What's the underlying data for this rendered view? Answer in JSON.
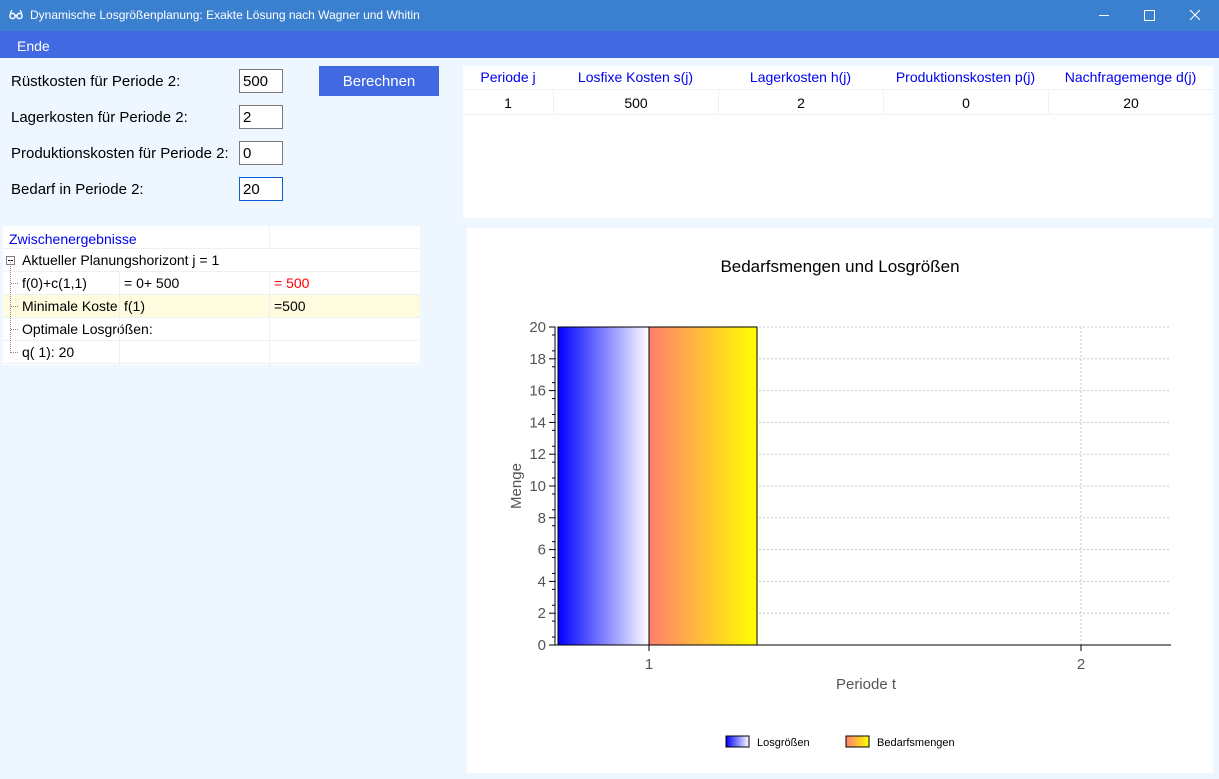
{
  "window": {
    "title": "Dynamische Losgrößenplanung: Exakte Lösung nach Wagner und Whitin",
    "icon": "glasses-icon",
    "controls": [
      "minimize-icon",
      "maximize-icon",
      "close-icon"
    ]
  },
  "menu": {
    "items": [
      "Ende"
    ]
  },
  "form": {
    "fields": [
      {
        "label": "Rüstkosten für Periode 2:",
        "value": "500"
      },
      {
        "label": "Lagerkosten für Periode 2:",
        "value": "2"
      },
      {
        "label": "Produktionskosten für Periode 2:",
        "value": "0"
      },
      {
        "label": "Bedarf in Periode 2:",
        "value": "20"
      }
    ],
    "button_label": "Berechnen"
  },
  "table": {
    "headers": [
      "Periode j",
      "Losfixe Kosten s(j)",
      "Lagerkosten h(j)",
      "Produktionskosten p(j)",
      "Nachfragemenge d(j)"
    ],
    "rows": [
      [
        "1",
        "500",
        "2",
        "0",
        "20"
      ]
    ]
  },
  "tree": {
    "header": "Zwischenergebnisse",
    "collapse_icon": "minus-box-icon",
    "root": "Aktueller Planungshorizont j =  1",
    "rows": [
      [
        "f(0)+c(1,1)",
        "= 0+ 500",
        "= 500"
      ],
      [
        "Minimale Kosten",
        "f(1)",
        "=500"
      ],
      [
        "Optimale Losgrößen:",
        "",
        ""
      ],
      [
        "q( 1):  20",
        "",
        ""
      ]
    ],
    "highlight_color": "#fffbdf",
    "result_color": "#ff0000"
  },
  "chart_data": {
    "type": "bar",
    "title": "Bedarfsmengen und Losgrößen",
    "xlabel": "Periode t",
    "ylabel": "Menge",
    "categories": [
      "1",
      "2"
    ],
    "yticks": [
      "0",
      "2",
      "4",
      "6",
      "8",
      "10",
      "12",
      "14",
      "16",
      "18",
      "20"
    ],
    "ylim": [
      0,
      20
    ],
    "grid": true,
    "legend_position": "bottom-center",
    "series": [
      {
        "name": "Losgrößen",
        "values": [
          20,
          0
        ],
        "colors": [
          "#0000ff",
          "#ffffff"
        ]
      },
      {
        "name": "Bedarfsmengen",
        "values": [
          20,
          0
        ],
        "colors": [
          "#ff7f6e",
          "#ffff00"
        ]
      }
    ]
  },
  "colors": {
    "titlebar": "#3b7fcf",
    "menubar": "#4169e1",
    "button": "#4169e1",
    "panel": "#eef6ff",
    "header_text": "#0000ee"
  }
}
